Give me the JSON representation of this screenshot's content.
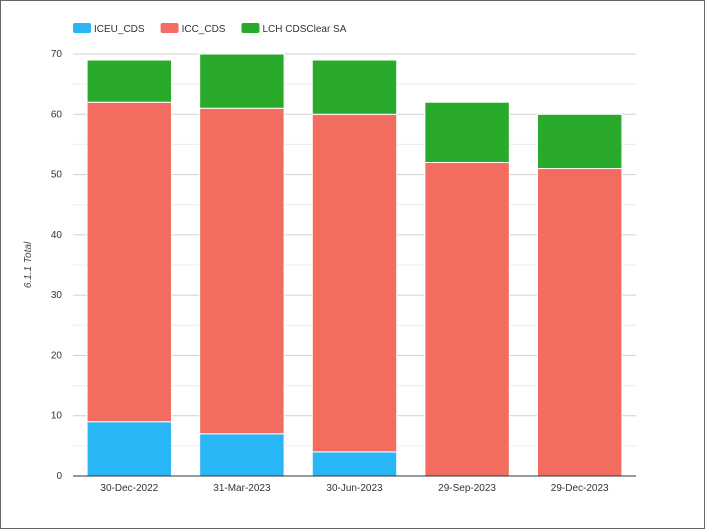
{
  "chart_data": {
    "type": "bar",
    "stacked": true,
    "categories": [
      "30-Dec-2022",
      "31-Mar-2023",
      "30-Jun-2023",
      "29-Sep-2023",
      "29-Dec-2023"
    ],
    "series": [
      {
        "name": "ICEU_CDS",
        "color": "#29b6f6",
        "values": [
          9,
          7,
          4,
          0,
          0
        ]
      },
      {
        "name": "ICC_CDS",
        "color": "#f26d5f",
        "values": [
          53,
          54,
          56,
          52,
          51
        ]
      },
      {
        "name": "LCH CDSClear SA",
        "color": "#2aaa2a",
        "values": [
          7,
          9,
          9,
          10,
          9
        ]
      }
    ],
    "title": "",
    "xlabel": "",
    "ylabel": "6.1.1 Total",
    "ylim": [
      0,
      70
    ],
    "yticks": [
      0,
      10,
      20,
      30,
      40,
      50,
      60,
      70
    ],
    "grid": true,
    "legend_position": "top-left"
  }
}
